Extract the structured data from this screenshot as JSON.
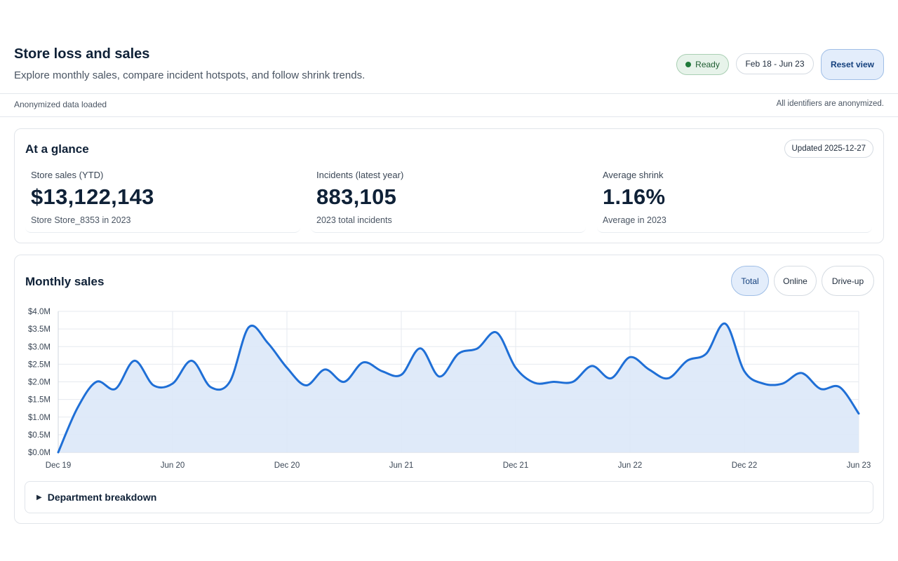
{
  "header": {
    "title": "Store loss and sales",
    "subtitle": "Explore monthly sales, compare incident hotspots, and follow shrink trends.",
    "status": "Ready",
    "date_range": "Feb 18 - Jun 23",
    "reset_label": "Reset view"
  },
  "subbar": {
    "left": "Anonymized data loaded",
    "right": "All identifiers are anonymized."
  },
  "glance": {
    "title": "At a glance",
    "updated": "Updated 2025-12-27",
    "kpis": [
      {
        "label": "Store sales (YTD)",
        "value": "$13,122,143",
        "sub": "Store Store_8353 in 2023"
      },
      {
        "label": "Incidents (latest year)",
        "value": "883,105",
        "sub": "2023 total incidents"
      },
      {
        "label": "Average shrink",
        "value": "1.16%",
        "sub": "Average in 2023"
      }
    ]
  },
  "sales": {
    "title": "Monthly sales",
    "tabs": [
      "Total",
      "Online",
      "Drive-up"
    ],
    "active_tab": "Total",
    "breakdown_label": "Department breakdown"
  },
  "colors": {
    "line": "#1f6fd6",
    "area": "#dce8f8",
    "accent": "#14407d"
  },
  "chart_data": {
    "type": "area",
    "title": "",
    "xlabel": "",
    "ylabel": "",
    "x_ticks": [
      "Dec 19",
      "Jun 20",
      "Dec 20",
      "Jun 21",
      "Dec 21",
      "Jun 22",
      "Dec 22",
      "Jun 23"
    ],
    "y_ticks": [
      "$0.0M",
      "$0.5M",
      "$1.0M",
      "$1.5M",
      "$2.0M",
      "$2.5M",
      "$3.0M",
      "$3.5M",
      "$4.0M"
    ],
    "ylim": [
      0,
      4.0
    ],
    "y_unit": "$M",
    "x": [
      "Dec 19",
      "Jan 20",
      "Feb 20",
      "Mar 20",
      "Apr 20",
      "May 20",
      "Jun 20",
      "Jul 20",
      "Aug 20",
      "Sep 20",
      "Oct 20",
      "Nov 20",
      "Dec 20",
      "Jan 21",
      "Feb 21",
      "Mar 21",
      "Apr 21",
      "May 21",
      "Jun 21",
      "Jul 21",
      "Aug 21",
      "Sep 21",
      "Oct 21",
      "Nov 21",
      "Dec 21",
      "Jan 22",
      "Feb 22",
      "Mar 22",
      "Apr 22",
      "May 22",
      "Jun 22",
      "Jul 22",
      "Aug 22",
      "Sep 22",
      "Oct 22",
      "Nov 22",
      "Dec 22",
      "Jan 23",
      "Feb 23",
      "Mar 23",
      "Apr 23",
      "May 23",
      "Jun 23"
    ],
    "series": [
      {
        "values": [
          0.0,
          1.25,
          2.0,
          1.8,
          2.6,
          1.9,
          1.95,
          2.6,
          1.85,
          2.0,
          3.55,
          3.1,
          2.4,
          1.9,
          2.35,
          2.0,
          2.55,
          2.3,
          2.2,
          2.95,
          2.15,
          2.8,
          2.95,
          3.4,
          2.4,
          1.97,
          2.0,
          2.0,
          2.45,
          2.1,
          2.7,
          2.35,
          2.1,
          2.6,
          2.8,
          3.65,
          2.3,
          1.95,
          1.95,
          2.25,
          1.8,
          1.85,
          1.1
        ]
      }
    ],
    "grid": true,
    "legend": "none"
  }
}
